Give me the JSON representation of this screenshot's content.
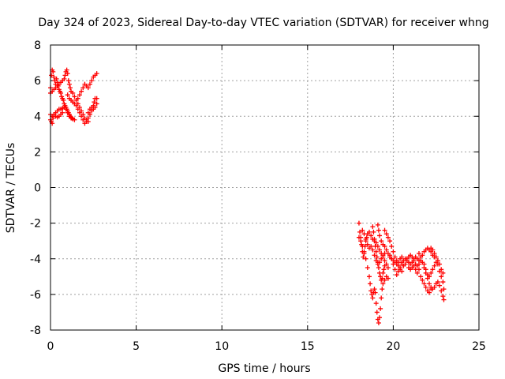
{
  "chart_data": {
    "type": "scatter",
    "title": "Day 324 of 2023, Sidereal Day-to-day VTEC variation (SDTVAR) for receiver whng",
    "xlabel": "GPS time / hours",
    "ylabel": "SDTVAR / TECUs",
    "xlim": [
      0,
      25
    ],
    "ylim": [
      -8,
      8
    ],
    "xticks": [
      0,
      5,
      10,
      15,
      20,
      25
    ],
    "yticks": [
      -8,
      -6,
      -4,
      -2,
      0,
      2,
      4,
      6,
      8
    ],
    "grid": true,
    "marker": "+",
    "series": [
      {
        "color": "#ff0000",
        "points": [
          [
            0.0,
            5.6
          ],
          [
            0.05,
            6.3
          ],
          [
            0.1,
            6.6
          ],
          [
            0.15,
            6.5
          ],
          [
            0.2,
            6.2
          ],
          [
            0.25,
            6.0
          ],
          [
            0.3,
            5.8
          ],
          [
            0.35,
            6.1
          ],
          [
            0.4,
            5.9
          ],
          [
            0.45,
            5.7
          ],
          [
            0.5,
            5.5
          ],
          [
            0.55,
            5.4
          ],
          [
            0.6,
            5.3
          ],
          [
            0.65,
            5.1
          ],
          [
            0.7,
            5.0
          ],
          [
            0.75,
            4.9
          ],
          [
            0.8,
            4.7
          ],
          [
            0.85,
            4.6
          ],
          [
            0.9,
            4.5
          ],
          [
            0.95,
            4.4
          ],
          [
            1.0,
            4.3
          ],
          [
            1.05,
            4.2
          ],
          [
            1.1,
            4.1
          ],
          [
            1.15,
            4.0
          ],
          [
            1.2,
            3.95
          ],
          [
            1.25,
            3.9
          ],
          [
            0.0,
            5.3
          ],
          [
            0.1,
            5.4
          ],
          [
            0.2,
            5.5
          ],
          [
            0.3,
            5.6
          ],
          [
            0.4,
            5.7
          ],
          [
            0.5,
            5.8
          ],
          [
            0.6,
            5.9
          ],
          [
            0.7,
            6.0
          ],
          [
            0.8,
            6.1
          ],
          [
            0.85,
            6.3
          ],
          [
            0.9,
            6.5
          ],
          [
            0.95,
            6.6
          ],
          [
            1.0,
            6.4
          ],
          [
            1.05,
            6.0
          ],
          [
            1.1,
            5.8
          ],
          [
            1.15,
            5.6
          ],
          [
            1.2,
            5.4
          ],
          [
            1.3,
            5.3
          ],
          [
            1.4,
            5.1
          ],
          [
            1.5,
            4.9
          ],
          [
            1.6,
            4.7
          ],
          [
            1.7,
            4.5
          ],
          [
            1.8,
            4.3
          ],
          [
            1.9,
            4.1
          ],
          [
            2.0,
            3.9
          ],
          [
            2.1,
            3.8
          ],
          [
            2.2,
            3.7
          ],
          [
            1.0,
            5.2
          ],
          [
            1.1,
            5.0
          ],
          [
            1.2,
            4.9
          ],
          [
            1.3,
            4.8
          ],
          [
            1.4,
            4.7
          ],
          [
            1.5,
            4.6
          ],
          [
            1.6,
            4.4
          ],
          [
            1.7,
            4.2
          ],
          [
            1.8,
            4.0
          ],
          [
            1.9,
            3.8
          ],
          [
            2.0,
            3.6
          ],
          [
            2.1,
            3.7
          ],
          [
            2.2,
            3.9
          ],
          [
            2.3,
            4.1
          ],
          [
            2.4,
            4.3
          ],
          [
            2.5,
            4.6
          ],
          [
            2.55,
            4.8
          ],
          [
            2.6,
            5.0
          ],
          [
            1.6,
            5.0
          ],
          [
            1.7,
            5.2
          ],
          [
            1.8,
            5.4
          ],
          [
            1.9,
            5.6
          ],
          [
            2.0,
            5.8
          ],
          [
            2.1,
            5.7
          ],
          [
            2.2,
            5.6
          ],
          [
            2.3,
            5.8
          ],
          [
            2.4,
            6.0
          ],
          [
            2.5,
            6.2
          ],
          [
            2.6,
            6.3
          ],
          [
            2.7,
            6.4
          ],
          [
            0.0,
            4.1
          ],
          [
            0.05,
            3.7
          ],
          [
            0.1,
            3.6
          ],
          [
            0.15,
            3.9
          ],
          [
            0.2,
            4.1
          ],
          [
            0.3,
            4.2
          ],
          [
            0.4,
            4.3
          ],
          [
            0.5,
            4.4
          ],
          [
            0.6,
            4.4
          ],
          [
            0.7,
            4.45
          ],
          [
            0.8,
            4.5
          ],
          [
            0.9,
            4.4
          ],
          [
            1.0,
            4.2
          ],
          [
            1.1,
            4.0
          ],
          [
            1.2,
            3.9
          ],
          [
            1.3,
            3.85
          ],
          [
            1.4,
            3.8
          ],
          [
            0.0,
            3.8
          ],
          [
            0.1,
            4.0
          ],
          [
            0.2,
            4.1
          ],
          [
            0.3,
            4.0
          ],
          [
            0.4,
            3.95
          ],
          [
            0.5,
            4.0
          ],
          [
            0.6,
            4.1
          ],
          [
            0.7,
            4.2
          ],
          [
            2.2,
            4.2
          ],
          [
            2.3,
            4.4
          ],
          [
            2.4,
            4.5
          ],
          [
            2.5,
            4.4
          ],
          [
            2.6,
            4.5
          ],
          [
            2.7,
            4.7
          ],
          [
            2.7,
            5.0
          ],
          [
            18.0,
            -2.0
          ],
          [
            18.05,
            -2.5
          ],
          [
            18.1,
            -2.8
          ],
          [
            18.15,
            -3.2
          ],
          [
            18.2,
            -3.6
          ],
          [
            18.25,
            -3.9
          ],
          [
            18.3,
            -3.7
          ],
          [
            18.35,
            -3.3
          ],
          [
            18.4,
            -3.0
          ],
          [
            18.45,
            -2.8
          ],
          [
            18.5,
            -2.6
          ],
          [
            18.6,
            -2.5
          ],
          [
            18.7,
            -2.7
          ],
          [
            18.8,
            -2.9
          ],
          [
            18.9,
            -3.0
          ],
          [
            19.0,
            -3.1
          ],
          [
            19.1,
            -3.3
          ],
          [
            19.2,
            -3.5
          ],
          [
            19.3,
            -3.7
          ],
          [
            19.4,
            -3.9
          ],
          [
            19.5,
            -4.1
          ],
          [
            19.6,
            -4.3
          ],
          [
            19.7,
            -4.5
          ],
          [
            18.0,
            -2.8
          ],
          [
            18.1,
            -3.0
          ],
          [
            18.2,
            -3.3
          ],
          [
            18.3,
            -3.6
          ],
          [
            18.4,
            -4.0
          ],
          [
            18.5,
            -4.5
          ],
          [
            18.6,
            -5.0
          ],
          [
            18.65,
            -5.4
          ],
          [
            18.7,
            -5.8
          ],
          [
            18.75,
            -6.0
          ],
          [
            18.8,
            -6.2
          ],
          [
            18.85,
            -5.9
          ],
          [
            18.9,
            -5.7
          ],
          [
            18.95,
            -5.9
          ],
          [
            19.0,
            -6.5
          ],
          [
            19.05,
            -7.0
          ],
          [
            19.1,
            -7.4
          ],
          [
            19.15,
            -7.6
          ],
          [
            19.2,
            -7.3
          ],
          [
            19.25,
            -6.8
          ],
          [
            19.3,
            -6.2
          ],
          [
            19.35,
            -5.7
          ],
          [
            19.4,
            -5.4
          ],
          [
            19.5,
            -5.2
          ],
          [
            19.6,
            -5.0
          ],
          [
            19.7,
            -5.1
          ],
          [
            18.8,
            -2.2
          ],
          [
            18.85,
            -2.5
          ],
          [
            18.9,
            -2.9
          ],
          [
            18.95,
            -3.3
          ],
          [
            19.0,
            -3.6
          ],
          [
            19.05,
            -3.9
          ],
          [
            19.1,
            -4.2
          ],
          [
            19.15,
            -4.5
          ],
          [
            19.2,
            -4.8
          ],
          [
            19.25,
            -5.0
          ],
          [
            19.3,
            -5.2
          ],
          [
            19.35,
            -5.1
          ],
          [
            19.4,
            -4.8
          ],
          [
            19.45,
            -4.6
          ],
          [
            19.5,
            -4.4
          ],
          [
            19.1,
            -2.1
          ],
          [
            19.15,
            -2.4
          ],
          [
            19.2,
            -2.7
          ],
          [
            19.3,
            -3.0
          ],
          [
            19.4,
            -3.2
          ],
          [
            19.5,
            -3.3
          ],
          [
            19.6,
            -3.5
          ],
          [
            19.7,
            -3.7
          ],
          [
            19.8,
            -3.9
          ],
          [
            19.9,
            -4.0
          ],
          [
            20.0,
            -4.1
          ],
          [
            20.1,
            -4.2
          ],
          [
            20.2,
            -4.3
          ],
          [
            20.3,
            -4.2
          ],
          [
            20.4,
            -4.0
          ],
          [
            20.5,
            -3.9
          ],
          [
            19.5,
            -2.4
          ],
          [
            19.6,
            -2.6
          ],
          [
            19.7,
            -2.8
          ],
          [
            19.8,
            -3.0
          ],
          [
            19.9,
            -3.3
          ],
          [
            20.0,
            -3.6
          ],
          [
            20.1,
            -3.9
          ],
          [
            20.2,
            -4.1
          ],
          [
            20.3,
            -4.4
          ],
          [
            20.4,
            -4.6
          ],
          [
            20.5,
            -4.7
          ],
          [
            19.8,
            -3.8
          ],
          [
            19.9,
            -4.0
          ],
          [
            20.0,
            -4.3
          ],
          [
            20.1,
            -4.6
          ],
          [
            20.2,
            -4.9
          ],
          [
            20.3,
            -4.7
          ],
          [
            20.4,
            -4.5
          ],
          [
            20.5,
            -4.3
          ],
          [
            20.6,
            -4.1
          ],
          [
            20.7,
            -4.0
          ],
          [
            20.8,
            -4.1
          ],
          [
            20.9,
            -4.2
          ],
          [
            21.0,
            -4.3
          ],
          [
            21.1,
            -4.2
          ],
          [
            21.2,
            -4.0
          ],
          [
            21.3,
            -3.9
          ],
          [
            21.4,
            -4.0
          ],
          [
            21.5,
            -4.1
          ],
          [
            20.5,
            -4.2
          ],
          [
            20.6,
            -4.4
          ],
          [
            20.7,
            -4.3
          ],
          [
            20.8,
            -4.0
          ],
          [
            20.9,
            -3.9
          ],
          [
            21.0,
            -3.8
          ],
          [
            21.1,
            -3.9
          ],
          [
            21.2,
            -4.1
          ],
          [
            21.3,
            -4.3
          ],
          [
            21.4,
            -4.4
          ],
          [
            21.5,
            -4.3
          ],
          [
            21.6,
            -4.1
          ],
          [
            21.7,
            -3.8
          ],
          [
            21.8,
            -3.6
          ],
          [
            21.9,
            -3.5
          ],
          [
            22.0,
            -3.4
          ],
          [
            22.1,
            -3.5
          ],
          [
            22.2,
            -3.6
          ],
          [
            22.3,
            -3.8
          ],
          [
            22.4,
            -3.9
          ],
          [
            21.5,
            -3.7
          ],
          [
            21.6,
            -3.9
          ],
          [
            21.7,
            -4.2
          ],
          [
            21.8,
            -4.5
          ],
          [
            21.9,
            -4.8
          ],
          [
            22.0,
            -5.1
          ],
          [
            22.1,
            -5.4
          ],
          [
            22.2,
            -5.6
          ],
          [
            22.3,
            -5.7
          ],
          [
            22.4,
            -5.6
          ],
          [
            22.5,
            -5.4
          ],
          [
            22.6,
            -5.3
          ],
          [
            22.7,
            -5.5
          ],
          [
            22.8,
            -5.8
          ],
          [
            22.9,
            -6.1
          ],
          [
            22.95,
            -6.3
          ],
          [
            21.8,
            -4.3
          ],
          [
            21.9,
            -4.6
          ],
          [
            22.0,
            -4.9
          ],
          [
            22.1,
            -5.0
          ],
          [
            22.2,
            -4.8
          ],
          [
            22.3,
            -4.6
          ],
          [
            22.4,
            -4.4
          ],
          [
            22.5,
            -4.2
          ],
          [
            22.6,
            -4.1
          ],
          [
            22.7,
            -4.3
          ],
          [
            22.8,
            -4.6
          ],
          [
            22.9,
            -4.8
          ],
          [
            22.2,
            -3.4
          ],
          [
            22.3,
            -3.5
          ],
          [
            22.4,
            -3.7
          ],
          [
            22.5,
            -3.9
          ],
          [
            22.6,
            -4.3
          ],
          [
            22.7,
            -4.7
          ],
          [
            22.8,
            -5.0
          ],
          [
            22.9,
            -5.3
          ],
          [
            22.95,
            -5.7
          ],
          [
            21.6,
            -5.0
          ],
          [
            21.7,
            -5.2
          ],
          [
            21.8,
            -5.4
          ],
          [
            21.9,
            -5.6
          ],
          [
            22.0,
            -5.8
          ],
          [
            22.1,
            -5.9
          ],
          [
            22.2,
            -5.7
          ],
          [
            20.9,
            -4.5
          ],
          [
            21.0,
            -4.6
          ],
          [
            21.1,
            -4.5
          ],
          [
            21.2,
            -4.4
          ],
          [
            21.3,
            -4.6
          ],
          [
            21.4,
            -4.8
          ],
          [
            21.5,
            -4.6
          ],
          [
            18.2,
            -2.4
          ],
          [
            18.3,
            -2.6
          ],
          [
            18.4,
            -2.9
          ],
          [
            18.5,
            -3.2
          ],
          [
            18.6,
            -3.4
          ],
          [
            18.7,
            -3.3
          ],
          [
            18.8,
            -3.5
          ],
          [
            18.9,
            -3.8
          ],
          [
            19.0,
            -4.1
          ],
          [
            19.1,
            -4.3
          ],
          [
            19.2,
            -4.2
          ],
          [
            19.3,
            -4.0
          ],
          [
            19.4,
            -3.8
          ],
          [
            19.5,
            -3.7
          ]
        ]
      }
    ]
  }
}
